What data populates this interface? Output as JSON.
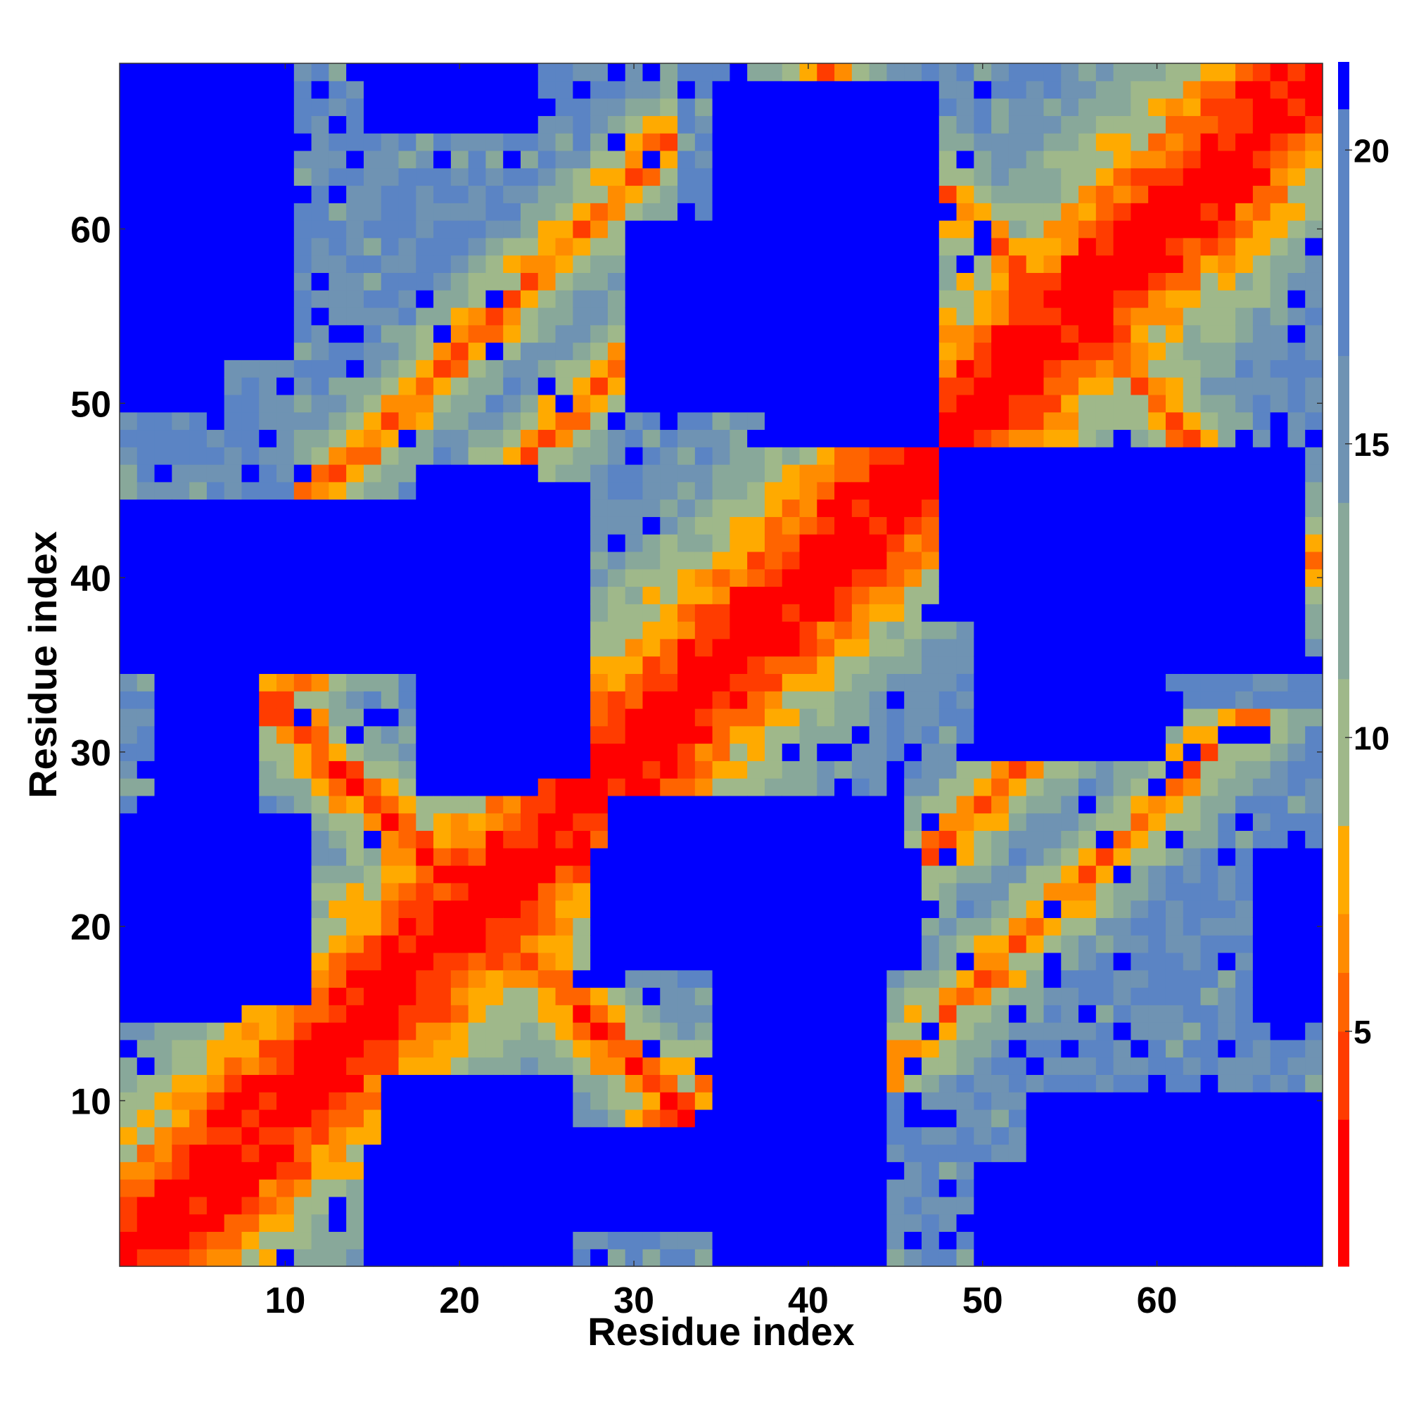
{
  "chart_data": {
    "type": "heatmap",
    "title": "",
    "xlabel": "Residue index",
    "ylabel": "Residue index",
    "n": 69,
    "x_range": [
      1,
      69
    ],
    "y_range": [
      1,
      69
    ],
    "x_ticks": [
      10,
      20,
      30,
      40,
      50,
      60
    ],
    "y_ticks": [
      10,
      20,
      30,
      40,
      50,
      60
    ],
    "colorbar": {
      "ticks": [
        5,
        10,
        15,
        20
      ],
      "range": [
        1,
        21.5
      ],
      "levels": [
        {
          "max": 3.5,
          "color": "#ff0000"
        },
        {
          "max": 5.0,
          "color": "#ff3c00"
        },
        {
          "max": 6.0,
          "color": "#ff6400"
        },
        {
          "max": 7.0,
          "color": "#ff8c00"
        },
        {
          "max": 8.5,
          "color": "#ffaa00"
        },
        {
          "max": 11.0,
          "color": "#9fb88a"
        },
        {
          "max": 14.0,
          "color": "#88a89a"
        },
        {
          "max": 16.5,
          "color": "#6f93b3"
        },
        {
          "max": 20.7,
          "color": "#5b84c4"
        },
        {
          "max": 99,
          "color": "#0000ff"
        }
      ]
    },
    "description_of_values": "symmetric residue-residue distance map; near-diagonal cells and the anti-diagonal band (i+j ~ 42) and parallel band (j-i ~ 23-33) show short distances",
    "bands": {
      "diagonal": "d = |i-j|",
      "antiparallel_sheet": {
        "sum": 42,
        "i_range": [
          1,
          21
        ]
      },
      "parallel_strands": [
        {
          "offset": 23,
          "i_range": [
            9,
            30
          ]
        },
        {
          "offset": 33,
          "i_range": [
            11,
            32
          ]
        }
      ],
      "antiparallel_upper": {
        "sum": 110,
        "i_range": [
          35,
          55
        ]
      }
    },
    "far_blocks": [
      {
        "x": [
          1,
          7
        ],
        "y": [
          15,
          24
        ]
      },
      {
        "x": [
          16,
          26
        ],
        "y": [
          1,
          11
        ]
      },
      {
        "x": [
          1,
          6
        ],
        "y": [
          50,
          69
        ]
      },
      {
        "x": [
          18,
          27
        ],
        "y": [
          29,
          45
        ]
      },
      {
        "x": [
          1,
          8
        ],
        "y": [
          36,
          44
        ]
      },
      {
        "x": [
          38,
          47
        ],
        "y": [
          48,
          68
        ]
      },
      {
        "x": [
          31,
          43
        ],
        "y": [
          52,
          57
        ]
      },
      {
        "x": [
          35,
          44
        ],
        "y": [
          1,
          24
        ]
      },
      {
        "x": [
          28,
          46
        ],
        "y": [
          18,
          24
        ]
      },
      {
        "x": [
          53,
          69
        ],
        "y": [
          1,
          10
        ]
      },
      {
        "x": [
          50,
          60
        ],
        "y": [
          30,
          45
        ]
      },
      {
        "x": [
          56,
          68
        ],
        "y": [
          35,
          44
        ]
      },
      {
        "x": [
          66,
          69
        ],
        "y": [
          15,
          24
        ]
      },
      {
        "x": [
          26,
          36
        ],
        "y": [
          3,
          8
        ]
      }
    ]
  }
}
